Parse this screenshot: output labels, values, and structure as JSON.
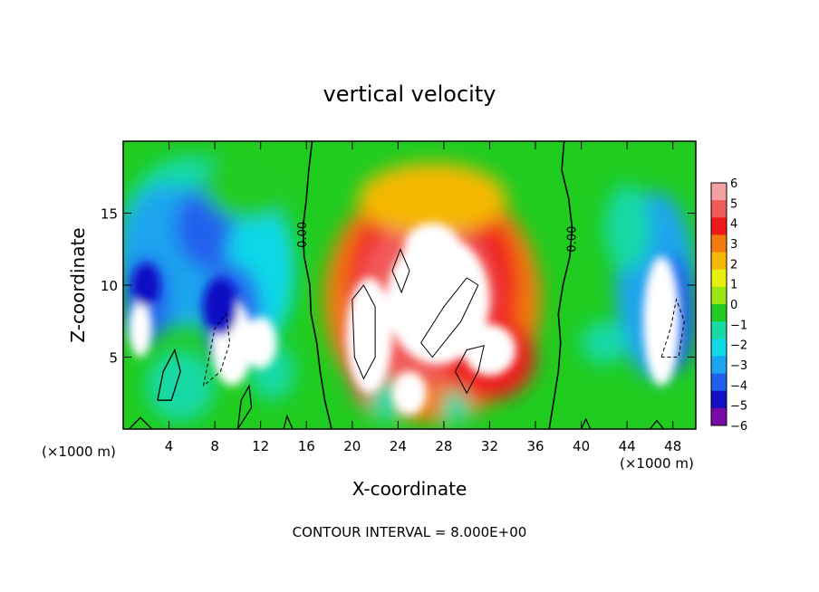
{
  "chart_data": {
    "type": "heatmap",
    "title": "vertical velocity",
    "xlabel": "X-coordinate",
    "ylabel": "Z-coordinate",
    "x_unit_label": "(×1000 m)",
    "x_unit_label_right": "(×1000 m)",
    "footer": "CONTOUR INTERVAL = 8.000E+00",
    "xlim": [
      0,
      50
    ],
    "ylim": [
      0,
      20
    ],
    "x_ticks": [
      "4",
      "8",
      "12",
      "16",
      "20",
      "24",
      "28",
      "32",
      "36",
      "40",
      "44",
      "48"
    ],
    "x_tick_values": [
      4,
      8,
      12,
      16,
      20,
      24,
      28,
      32,
      36,
      40,
      44,
      48
    ],
    "y_ticks": [
      "5",
      "10",
      "15"
    ],
    "y_tick_values": [
      5,
      10,
      15
    ],
    "contour_labels": [
      {
        "text": "0.00",
        "x": 16,
        "z": 13.5
      },
      {
        "text": "0.00",
        "x": 39.5,
        "z": 13.2
      }
    ],
    "colorbar": {
      "labels": [
        "6",
        "5",
        "4",
        "3",
        "2",
        "1",
        "0",
        "−1",
        "−2",
        "−3",
        "−4",
        "−5",
        "−6"
      ],
      "values": [
        6,
        5,
        4,
        3,
        2,
        1,
        0,
        -1,
        -2,
        -3,
        -4,
        -5,
        -6
      ],
      "colors": [
        "#f4a0a0",
        "#f25a5a",
        "#ee1a1a",
        "#f47a10",
        "#f5b800",
        "#e8ee10",
        "#9ae610",
        "#22cc22",
        "#19d9a6",
        "#10d8e8",
        "#1aa5ee",
        "#2060ee",
        "#1010c4",
        "#7a0aa8"
      ]
    },
    "field_features": [
      {
        "kind": "updraft",
        "center_x": 28,
        "center_z": 7.5,
        "peak": 6
      },
      {
        "kind": "downdraft",
        "center_x": 6,
        "center_z": 10,
        "peak": -6
      },
      {
        "kind": "downdraft",
        "center_x": 46,
        "center_z": 10,
        "peak": -6
      }
    ]
  }
}
